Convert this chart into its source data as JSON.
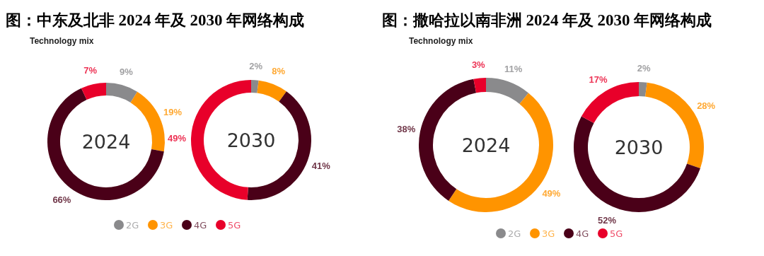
{
  "chart_data": [
    {
      "type": "donut",
      "title": "图：中东及北非 **2024** 年及 **2030** 年网络构成",
      "subtitle": "Technology mix",
      "legend": "bottom",
      "categories": [
        "2G",
        "3G",
        "4G",
        "5G"
      ],
      "colors": [
        "#8a8a8c",
        "#ff9400",
        "#4a0018",
        "#e8002a"
      ],
      "series": [
        {
          "name": "2024",
          "values": [
            9,
            19,
            66,
            7
          ],
          "value_labels": [
            "9%",
            "19%",
            "66%",
            "7%"
          ]
        },
        {
          "name": "2030",
          "values": [
            2,
            8,
            41,
            49
          ],
          "value_labels": [
            "2%",
            "8%",
            "41%",
            "49%"
          ]
        }
      ]
    },
    {
      "type": "donut",
      "title": "图：撒哈拉以南非洲 **2024** 年及 **2030** 年网络构成",
      "subtitle": "Technology mix",
      "legend": "bottom",
      "categories": [
        "2G",
        "3G",
        "4G",
        "5G"
      ],
      "colors": [
        "#8a8a8c",
        "#ff9400",
        "#4a0018",
        "#e8002a"
      ],
      "series": [
        {
          "name": "2024",
          "values": [
            11,
            49,
            38,
            3
          ],
          "value_labels": [
            "11%",
            "49%",
            "38%",
            "3%"
          ]
        },
        {
          "name": "2030",
          "values": [
            2,
            28,
            52,
            17
          ],
          "value_labels": [
            "2%",
            "28%",
            "52%",
            "17%"
          ]
        }
      ]
    }
  ]
}
